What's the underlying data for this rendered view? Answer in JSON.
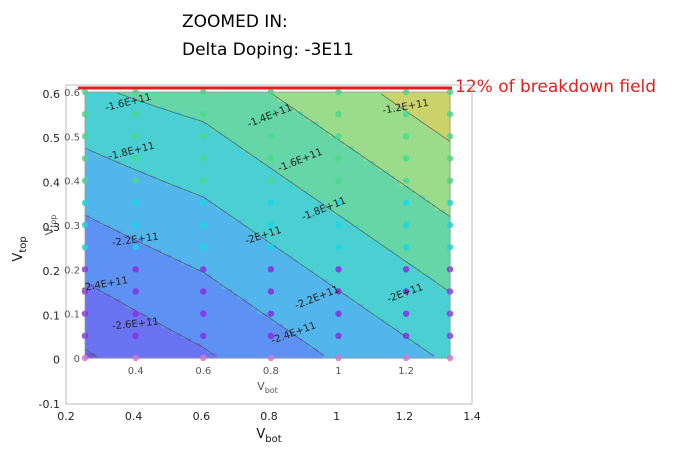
{
  "title_line1": "ZOOMED IN:",
  "title_line2": "Delta Doping: -3E11",
  "annotation": "12% of breakdown field",
  "colors": {
    "annotation": "#e0201c",
    "bands": [
      "#7258d8",
      "#6a74f2",
      "#5d92f4",
      "#52b6ec",
      "#4ad0d2",
      "#66d6a6",
      "#9adc8c",
      "#cdd36c",
      "#f2d870",
      "#f2f062"
    ],
    "dot_magenta": "#e66cdc",
    "dot_purple": "#8a2ee0",
    "dot_cyan": "#16d8e6",
    "dot_green": "#46dc8c"
  },
  "chart_data": {
    "type": "contour",
    "xlabel": "V",
    "xlabel_sub": "bot",
    "ylabel": "V",
    "ylabel_sub": "top",
    "outer_axes": {
      "xlim": [
        0.2,
        1.4
      ],
      "ylim": [
        -0.1,
        0.62
      ],
      "xticks": [
        0.2,
        0.4,
        0.6,
        0.8,
        1,
        1.2,
        1.4
      ],
      "xtick_labels": [
        "0.2",
        "0.4",
        "0.6",
        "0.8",
        "1",
        "1.2",
        "1.4"
      ],
      "yticks": [
        -0.1,
        0,
        0.1,
        0.2,
        0.3,
        0.4,
        0.5,
        0.6
      ],
      "ytick_labels": [
        "-0.1",
        "0",
        "0.1",
        "0.2",
        "0.3",
        "0.4",
        "0.5",
        "0.6"
      ]
    },
    "inner_axes": {
      "xlim": [
        0.25,
        1.33
      ],
      "ylim": [
        0,
        0.6
      ],
      "xticks": [
        0.4,
        0.6,
        0.8,
        1,
        1.2
      ],
      "xtick_labels": [
        "0.4",
        "0.6",
        "0.8",
        "1",
        "1.2"
      ],
      "yticks": [
        0,
        0.1,
        0.2,
        0.3,
        0.4,
        0.5,
        0.6
      ],
      "ytick_labels": [
        "0",
        "0.1",
        "0.2",
        "0.3",
        "0.4",
        "0.5",
        "0.6"
      ]
    },
    "contour_levels": [
      -260000000000.0,
      -240000000000.0,
      -220000000000.0,
      -200000000000.0,
      -180000000000.0,
      -160000000000.0,
      -140000000000.0,
      -120000000000.0
    ],
    "contour_label_text": [
      "-2.6E+11",
      "-2.4E+11",
      "-2.2E+11",
      "-2E+11",
      "-1.8E+11",
      "-1.6E+11",
      "-1.4E+11",
      "-1.2E+11"
    ],
    "contour_labels": [
      {
        "text": "-1.6E+11",
        "x": 0.38,
        "y": 0.57,
        "angle": -14
      },
      {
        "text": "-1.4E+11",
        "x": 0.8,
        "y": 0.54,
        "angle": -22
      },
      {
        "text": "-1.2E+11",
        "x": 1.2,
        "y": 0.56,
        "angle": -10
      },
      {
        "text": "-1.8E+11",
        "x": 0.39,
        "y": 0.46,
        "angle": -14
      },
      {
        "text": "-1.6E+11",
        "x": 0.89,
        "y": 0.44,
        "angle": -22
      },
      {
        "text": "-1.8E+11",
        "x": 0.96,
        "y": 0.33,
        "angle": -22
      },
      {
        "text": "-2E+11",
        "x": 0.78,
        "y": 0.27,
        "angle": -18
      },
      {
        "text": "-2.2E+11",
        "x": 0.4,
        "y": 0.26,
        "angle": -8
      },
      {
        "text": "-2.4E+11",
        "x": 0.31,
        "y": 0.16,
        "angle": -10
      },
      {
        "text": "-2.2E+11",
        "x": 0.94,
        "y": 0.13,
        "angle": -22
      },
      {
        "text": "-2E+11",
        "x": 1.2,
        "y": 0.14,
        "angle": -20
      },
      {
        "text": "-2.6E+11",
        "x": 0.4,
        "y": 0.07,
        "angle": -6
      },
      {
        "text": "-2.4E+11",
        "x": 0.87,
        "y": 0.05,
        "angle": -20
      }
    ],
    "sample_x": [
      0.25,
      0.4,
      0.6,
      0.8,
      1.0,
      1.2,
      1.33
    ],
    "sample_y": [
      0,
      0.05,
      0.1,
      0.15,
      0.2,
      0.25,
      0.3,
      0.35,
      0.4,
      0.45,
      0.5,
      0.55,
      0.6
    ],
    "breakdown_line_y": 0.61,
    "grid": false
  }
}
